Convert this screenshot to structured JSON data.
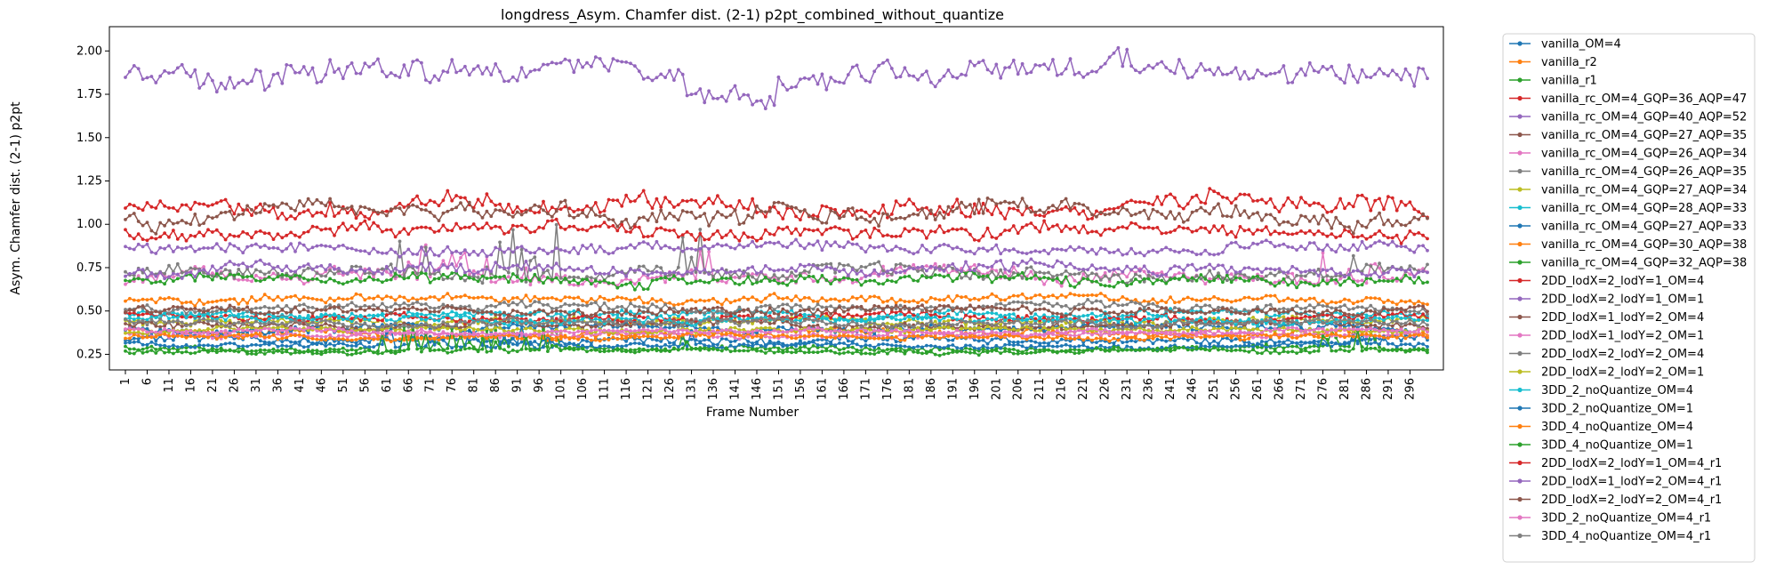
{
  "chart_data": {
    "type": "line",
    "title": "longdress_Asym. Chamfer dist. (2-1) p2pt_combined_without_quantize",
    "xlabel": "Frame Number",
    "ylabel": "Asym. Chamfer dist. (2-1) p2pt",
    "x_range": [
      1,
      300
    ],
    "x_ticks": [
      1,
      6,
      11,
      16,
      21,
      26,
      31,
      36,
      41,
      46,
      51,
      56,
      61,
      66,
      71,
      76,
      81,
      86,
      91,
      96,
      101,
      106,
      111,
      116,
      121,
      126,
      131,
      136,
      141,
      146,
      151,
      156,
      161,
      166,
      171,
      176,
      181,
      186,
      191,
      196,
      201,
      206,
      211,
      216,
      221,
      226,
      231,
      236,
      241,
      246,
      251,
      256,
      261,
      266,
      271,
      276,
      281,
      286,
      291,
      296
    ],
    "y_ticks": [
      0.25,
      0.5,
      0.75,
      1.0,
      1.25,
      1.5,
      1.75,
      2.0
    ],
    "y_tick_labels": [
      "0.25",
      "0.50",
      "0.75",
      "1.00",
      "1.25",
      "1.50",
      "1.75",
      "2.00"
    ],
    "ylim": [
      0.16,
      2.14
    ],
    "grid": false,
    "legend_position": "outside-right",
    "marker": "dot",
    "series": [
      {
        "name": "vanilla_OM=4",
        "color": "#1f77b4",
        "base": 0.33,
        "amp": 0.03,
        "spike": 0.0
      },
      {
        "name": "vanilla_r2",
        "color": "#ff7f0e",
        "base": 0.37,
        "amp": 0.03,
        "spike": 0.0
      },
      {
        "name": "vanilla_r1",
        "color": "#2ca02c",
        "base": 0.28,
        "amp": 0.02,
        "spike": 0.12
      },
      {
        "name": "vanilla_rc_OM=4_GQP=36_AQP=47",
        "color": "#d62728",
        "base": 1.1,
        "amp": 0.07,
        "spike": 0.0
      },
      {
        "name": "vanilla_rc_OM=4_GQP=40_AQP=52",
        "color": "#9467bd",
        "base": 1.88,
        "amp": 0.09,
        "spike": 0.0
      },
      {
        "name": "vanilla_rc_OM=4_GQP=27_AQP=35",
        "color": "#8c564b",
        "base": 1.06,
        "amp": 0.07,
        "spike": 0.0
      },
      {
        "name": "vanilla_rc_OM=4_GQP=26_AQP=34",
        "color": "#e377c2",
        "base": 0.7,
        "amp": 0.05,
        "spike": 0.18
      },
      {
        "name": "vanilla_rc_OM=4_GQP=26_AQP=35",
        "color": "#7f7f7f",
        "base": 0.72,
        "amp": 0.05,
        "spike": 0.3
      },
      {
        "name": "vanilla_rc_OM=4_GQP=27_AQP=34",
        "color": "#bcbd22",
        "base": 0.44,
        "amp": 0.03,
        "spike": 0.0
      },
      {
        "name": "vanilla_rc_OM=4_GQP=28_AQP=33",
        "color": "#17becf",
        "base": 0.48,
        "amp": 0.03,
        "spike": 0.0
      },
      {
        "name": "vanilla_rc_OM=4_GQP=27_AQP=33",
        "color": "#1f77b4",
        "base": 0.4,
        "amp": 0.03,
        "spike": 0.0
      },
      {
        "name": "vanilla_rc_OM=4_GQP=30_AQP=38",
        "color": "#ff7f0e",
        "base": 0.57,
        "amp": 0.03,
        "spike": 0.0
      },
      {
        "name": "vanilla_rc_OM=4_GQP=32_AQP=38",
        "color": "#2ca02c",
        "base": 0.68,
        "amp": 0.04,
        "spike": 0.0
      },
      {
        "name": "2DD_lodX=2_lodY=1_OM=4",
        "color": "#d62728",
        "base": 0.46,
        "amp": 0.03,
        "spike": 0.0
      },
      {
        "name": "2DD_lodX=2_lodY=1_OM=1",
        "color": "#9467bd",
        "base": 0.86,
        "amp": 0.04,
        "spike": 0.0
      },
      {
        "name": "2DD_lodX=1_lodY=2_OM=4",
        "color": "#8c564b",
        "base": 0.42,
        "amp": 0.03,
        "spike": 0.0
      },
      {
        "name": "2DD_lodX=1_lodY=2_OM=1",
        "color": "#e377c2",
        "base": 0.36,
        "amp": 0.02,
        "spike": 0.0
      },
      {
        "name": "2DD_lodX=2_lodY=2_OM=4",
        "color": "#7f7f7f",
        "base": 0.52,
        "amp": 0.03,
        "spike": 0.0
      },
      {
        "name": "2DD_lodX=2_lodY=2_OM=1",
        "color": "#bcbd22",
        "base": 0.39,
        "amp": 0.02,
        "spike": 0.0
      },
      {
        "name": "3DD_2_noQuantize_OM=4",
        "color": "#17becf",
        "base": 0.45,
        "amp": 0.03,
        "spike": 0.0
      },
      {
        "name": "3DD_2_noQuantize_OM=1",
        "color": "#1f77b4",
        "base": 0.3,
        "amp": 0.02,
        "spike": 0.1
      },
      {
        "name": "3DD_4_noQuantize_OM=4",
        "color": "#ff7f0e",
        "base": 0.35,
        "amp": 0.02,
        "spike": 0.0
      },
      {
        "name": "3DD_4_noQuantize_OM=1",
        "color": "#2ca02c",
        "base": 0.27,
        "amp": 0.02,
        "spike": 0.14
      },
      {
        "name": "2DD_lodX=2_lodY=1_OM=4_r1",
        "color": "#d62728",
        "base": 0.96,
        "amp": 0.05,
        "spike": 0.0
      },
      {
        "name": "2DD_lodX=1_lodY=2_OM=4_r1",
        "color": "#9467bd",
        "base": 0.74,
        "amp": 0.04,
        "spike": 0.0
      },
      {
        "name": "2DD_lodX=2_lodY=2_OM=4_r1",
        "color": "#8c564b",
        "base": 0.5,
        "amp": 0.03,
        "spike": 0.0
      },
      {
        "name": "3DD_2_noQuantize_OM=4_r1",
        "color": "#e377c2",
        "base": 0.38,
        "amp": 0.02,
        "spike": 0.0
      },
      {
        "name": "3DD_4_noQuantize_OM=4_r1",
        "color": "#7f7f7f",
        "base": 0.43,
        "amp": 0.03,
        "spike": 0.0
      }
    ]
  }
}
